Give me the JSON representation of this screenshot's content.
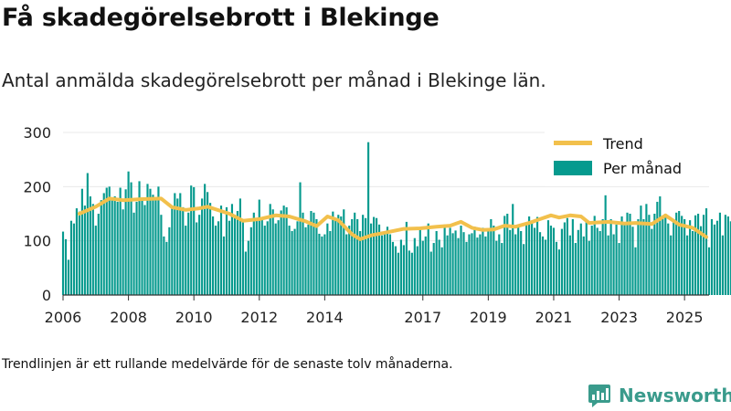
{
  "title": "Få skadegörelsebrott i Blekinge",
  "subtitle": "Antal anmälda skadegörelsebrott per månad i Blekinge län.",
  "note": "Trendlinjen är ett rullande medelvärde för de senaste tolv månaderna.",
  "brand": {
    "name": "Newsworthy",
    "logo_icon": "newsworthy-chart-bubble-icon"
  },
  "colors": {
    "bars": "#069a8e",
    "trend": "#f2c04c",
    "axis": "#333333",
    "grid": "#e8e8e8"
  },
  "chart_data": {
    "type": "bar",
    "x_axis": {
      "type": "date",
      "range": [
        "2006-01",
        "2025-10"
      ],
      "tick_labels": [
        "2006",
        "2008",
        "2010",
        "2012",
        "2014",
        "2017",
        "2019",
        "2021",
        "2023",
        "2025"
      ]
    },
    "y_axis": {
      "range": [
        0,
        300
      ],
      "ticks": [
        0,
        100,
        200,
        300
      ],
      "grid": true
    },
    "legend": {
      "position": "top-right",
      "entries": [
        "Trend",
        "Per månad"
      ]
    },
    "series": [
      {
        "name": "Per månad",
        "type": "bar",
        "start": "2006-01",
        "values": [
          117,
          103,
          65,
          137,
          132,
          160,
          154,
          196,
          165,
          225,
          182,
          168,
          128,
          150,
          175,
          188,
          198,
          200,
          178,
          182,
          172,
          198,
          158,
          195,
          228,
          208,
          152,
          172,
          210,
          180,
          166,
          205,
          196,
          185,
          178,
          200,
          148,
          108,
          98,
          125,
          160,
          188,
          178,
          188,
          162,
          128,
          152,
          202,
          199,
          134,
          148,
          178,
          205,
          190,
          170,
          145,
          128,
          136,
          165,
          108,
          162,
          137,
          168,
          145,
          155,
          178,
          139,
          80,
          100,
          125,
          152,
          140,
          176,
          140,
          128,
          136,
          168,
          158,
          132,
          138,
          156,
          165,
          162,
          128,
          118,
          122,
          136,
          208,
          152,
          125,
          130,
          155,
          152,
          140,
          113,
          108,
          112,
          132,
          118,
          154,
          142,
          148,
          145,
          158,
          112,
          128,
          140,
          152,
          140,
          118,
          148,
          142,
          282,
          132,
          144,
          142,
          130,
          110,
          116,
          126,
          112,
          98,
          90,
          78,
          102,
          92,
          135,
          82,
          78,
          105,
          90,
          122,
          100,
          108,
          132,
          80,
          96,
          118,
          102,
          88,
          130,
          110,
          124,
          114,
          119,
          105,
          128,
          116,
          98,
          112,
          114,
          126,
          106,
          112,
          124,
          108,
          120,
          140,
          128,
          100,
          112,
          96,
          146,
          150,
          120,
          168,
          112,
          126,
          118,
          94,
          130,
          145,
          136,
          124,
          144,
          116,
          108,
          102,
          138,
          128,
          124,
          98,
          84,
          122,
          134,
          142,
          110,
          140,
          96,
          120,
          132,
          108,
          136,
          100,
          128,
          146,
          124,
          118,
          140,
          184,
          110,
          140,
          112,
          130,
          96,
          145,
          130,
          152,
          150,
          126,
          88,
          140,
          165,
          140,
          168,
          148,
          122,
          150,
          172,
          182,
          145,
          150,
          132,
          110,
          140,
          152,
          155,
          146,
          140,
          110,
          138,
          118,
          147,
          150,
          127,
          148,
          160,
          88,
          140,
          130,
          137,
          152,
          110,
          148,
          145,
          136,
          118,
          126,
          150,
          110,
          124,
          140,
          132,
          116,
          160,
          148,
          124,
          110,
          146,
          122,
          138,
          164,
          96,
          116,
          140,
          152,
          120,
          106,
          100,
          160,
          140,
          145,
          124,
          152,
          158,
          168,
          96,
          104,
          136,
          138,
          124,
          118,
          140,
          176,
          170,
          145,
          150,
          126,
          108,
          108,
          106,
          104,
          104,
          96,
          138,
          95,
          80,
          140,
          135,
          80
        ]
      },
      {
        "name": "Trend",
        "type": "line",
        "points": [
          [
            "2006-07",
            150
          ],
          [
            "2007-01",
            163
          ],
          [
            "2007-06",
            178
          ],
          [
            "2007-11",
            175
          ],
          [
            "2008-06",
            177
          ],
          [
            "2009-01",
            178
          ],
          [
            "2009-05",
            162
          ],
          [
            "2009-10",
            157
          ],
          [
            "2010-03",
            160
          ],
          [
            "2010-06",
            163
          ],
          [
            "2011-02",
            150
          ],
          [
            "2011-07",
            137
          ],
          [
            "2012-01",
            140
          ],
          [
            "2012-07",
            147
          ],
          [
            "2012-12",
            145
          ],
          [
            "2013-06",
            136
          ],
          [
            "2013-10",
            127
          ],
          [
            "2014-02",
            145
          ],
          [
            "2014-06",
            138
          ],
          [
            "2014-11",
            112
          ],
          [
            "2015-02",
            103
          ],
          [
            "2015-06",
            110
          ],
          [
            "2015-11",
            115
          ],
          [
            "2016-06",
            122
          ],
          [
            "2016-12",
            123
          ],
          [
            "2017-06",
            126
          ],
          [
            "2017-11",
            128
          ],
          [
            "2018-03",
            135
          ],
          [
            "2018-07",
            124
          ],
          [
            "2018-11",
            120
          ],
          [
            "2019-03",
            121
          ],
          [
            "2019-07",
            128
          ],
          [
            "2019-11",
            126
          ],
          [
            "2020-04",
            133
          ],
          [
            "2020-08",
            140
          ],
          [
            "2020-12",
            147
          ],
          [
            "2021-03",
            143
          ],
          [
            "2021-07",
            147
          ],
          [
            "2021-11",
            145
          ],
          [
            "2022-02",
            133
          ],
          [
            "2022-09",
            135
          ],
          [
            "2023-03",
            132
          ],
          [
            "2023-07",
            133
          ],
          [
            "2024-01",
            131
          ],
          [
            "2024-06",
            147
          ],
          [
            "2024-11",
            130
          ],
          [
            "2025-04",
            124
          ],
          [
            "2025-09",
            107
          ]
        ]
      }
    ]
  }
}
